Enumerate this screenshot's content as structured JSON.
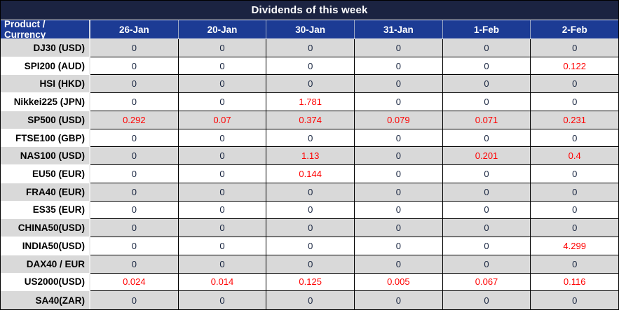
{
  "title": "Dividends of this week",
  "table": {
    "product_header": "Product / Currency",
    "date_headers": [
      "26-Jan",
      "20-Jan",
      "30-Jan",
      "31-Jan",
      "1-Feb",
      "2-Feb"
    ],
    "rows": [
      {
        "product": "DJ30 (USD)",
        "values": [
          "0",
          "0",
          "0",
          "0",
          "0",
          "0"
        ]
      },
      {
        "product": "SPI200 (AUD)",
        "values": [
          "0",
          "0",
          "0",
          "0",
          "0",
          "0.122"
        ]
      },
      {
        "product": "HSI (HKD)",
        "values": [
          "0",
          "0",
          "0",
          "0",
          "0",
          "0"
        ]
      },
      {
        "product": "Nikkei225 (JPN)",
        "values": [
          "0",
          "0",
          "1.781",
          "0",
          "0",
          "0"
        ]
      },
      {
        "product": "SP500 (USD)",
        "values": [
          "0.292",
          "0.07",
          "0.374",
          "0.079",
          "0.071",
          "0.231"
        ]
      },
      {
        "product": "FTSE100 (GBP)",
        "values": [
          "0",
          "0",
          "0",
          "0",
          "0",
          "0"
        ]
      },
      {
        "product": "NAS100 (USD)",
        "values": [
          "0",
          "0",
          "1.13",
          "0",
          "0.201",
          "0.4"
        ]
      },
      {
        "product": "EU50 (EUR)",
        "values": [
          "0",
          "0",
          "0.144",
          "0",
          "0",
          "0"
        ]
      },
      {
        "product": "FRA40 (EUR)",
        "values": [
          "0",
          "0",
          "0",
          "0",
          "0",
          "0"
        ]
      },
      {
        "product": "ES35 (EUR)",
        "values": [
          "0",
          "0",
          "0",
          "0",
          "0",
          "0"
        ]
      },
      {
        "product": "CHINA50(USD)",
        "values": [
          "0",
          "0",
          "0",
          "0",
          "0",
          "0"
        ]
      },
      {
        "product": "INDIA50(USD)",
        "values": [
          "0",
          "0",
          "0",
          "0",
          "0",
          "4.299"
        ]
      },
      {
        "product": "DAX40 / EUR",
        "values": [
          "0",
          "0",
          "0",
          "0",
          "0",
          "0"
        ]
      },
      {
        "product": "US2000(USD)",
        "values": [
          "0.024",
          "0.014",
          "0.125",
          "0.005",
          "0.067",
          "0.116"
        ]
      },
      {
        "product": "SA40(ZAR)",
        "values": [
          "0",
          "0",
          "0",
          "0",
          "0",
          "0"
        ]
      }
    ]
  },
  "colors": {
    "title_bg": "#1b2341",
    "header_bg": "#1c3b94",
    "row_alt_bg": "#d9d9d9",
    "row_bg": "#ffffff",
    "dividend_highlight": "#ff0000",
    "zero_text": "#16233e"
  }
}
